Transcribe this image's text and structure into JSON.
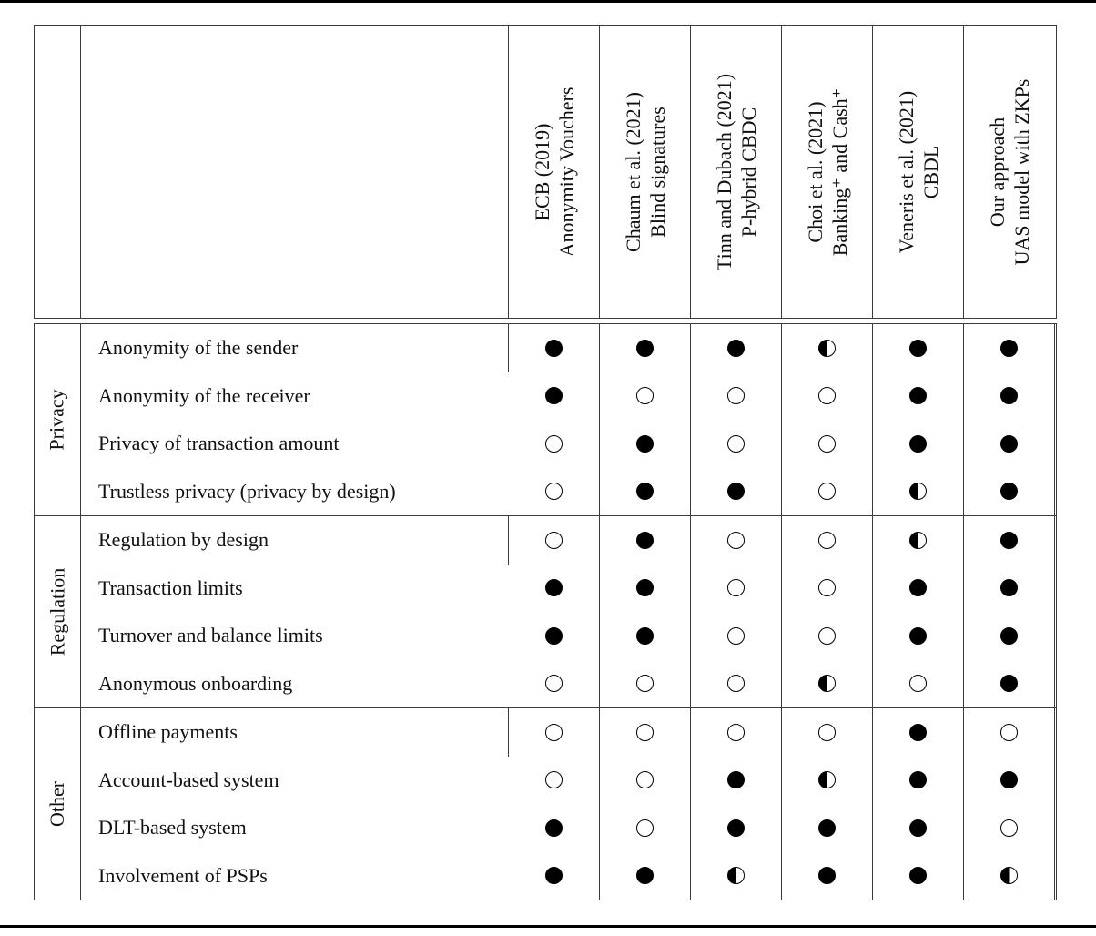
{
  "colors": {
    "line": "#3c3c3c",
    "rule": "#000000",
    "symbol_fill": "#000000"
  },
  "legend": {
    "full_meaning": "filled-circle",
    "empty_meaning": "empty-circle",
    "half_meaning": "half-filled-circle"
  },
  "table": {
    "columns": [
      {
        "line1": "ECB (2019)",
        "line2": "Anonymity Vouchers"
      },
      {
        "line1": "Chaum et al. (2021)",
        "line2": "Blind signatures"
      },
      {
        "line1": "Tinn and Dubach (2021)",
        "line2": "P-hybrid CBDC"
      },
      {
        "line1": "Choi et al. (2021)",
        "line2": "Banking⁺ and Cash⁺"
      },
      {
        "line1": "Veneris et al. (2021)",
        "line2": "CBDL"
      },
      {
        "line1": "Our approach",
        "line2": "UAS model with ZKPs"
      }
    ],
    "sections": [
      {
        "group": "Privacy",
        "rows": [
          {
            "label": "Anonymity of the sender",
            "values": [
              "full",
              "full",
              "full",
              "half",
              "full",
              "full"
            ]
          },
          {
            "label": "Anonymity of the receiver",
            "values": [
              "full",
              "empty",
              "empty",
              "empty",
              "full",
              "full"
            ]
          },
          {
            "label": "Privacy of transaction amount",
            "values": [
              "empty",
              "full",
              "empty",
              "empty",
              "full",
              "full"
            ]
          },
          {
            "label": "Trustless privacy (privacy by design)",
            "values": [
              "empty",
              "full",
              "full",
              "empty",
              "half",
              "full"
            ]
          }
        ]
      },
      {
        "group": "Regulation",
        "rows": [
          {
            "label": "Regulation by design",
            "values": [
              "empty",
              "full",
              "empty",
              "empty",
              "half",
              "full"
            ]
          },
          {
            "label": "Transaction limits",
            "values": [
              "full",
              "full",
              "empty",
              "empty",
              "full",
              "full"
            ]
          },
          {
            "label": "Turnover and balance limits",
            "values": [
              "full",
              "full",
              "empty",
              "empty",
              "full",
              "full"
            ]
          },
          {
            "label": "Anonymous onboarding",
            "values": [
              "empty",
              "empty",
              "empty",
              "half",
              "empty",
              "full"
            ]
          }
        ]
      },
      {
        "group": "Other",
        "rows": [
          {
            "label": "Offline payments",
            "values": [
              "empty",
              "empty",
              "empty",
              "empty",
              "full",
              "empty"
            ]
          },
          {
            "label": "Account-based system",
            "values": [
              "empty",
              "empty",
              "full",
              "half",
              "full",
              "full"
            ]
          },
          {
            "label": "DLT-based system",
            "values": [
              "full",
              "empty",
              "full",
              "full",
              "full",
              "empty"
            ]
          },
          {
            "label": "Involvement of PSPs",
            "values": [
              "full",
              "full",
              "half",
              "full",
              "full",
              "half"
            ]
          }
        ]
      }
    ]
  }
}
